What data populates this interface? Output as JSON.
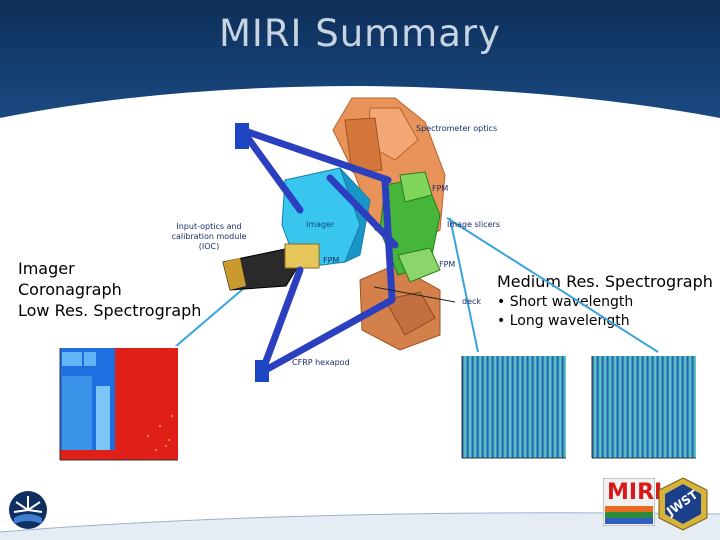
{
  "slide": {
    "title": "MIRI Summary",
    "left_labels": [
      "Imager",
      "Coronagraph",
      "Low Res. Spectrograph"
    ],
    "right_title": "Medium Res. Spectrograph",
    "right_bullets": [
      "• Short wavelength",
      "• Long wavelength"
    ]
  },
  "diagram_labels": {
    "spectrometer_optics": "Spectrometer optics",
    "fpm_top": "FPM",
    "image_slicers": "Image slicers",
    "fpm_right": "FPM",
    "fpm_left": "FPM",
    "imager": "Imager",
    "ioc": "Input-optics and calibration module (IOC)",
    "deck": "deck",
    "hexapod": "CFRP hexapod"
  },
  "logos": {
    "miri": "MIRI",
    "jwst": "JWST"
  },
  "colors": {
    "header_navy": "#123a6b",
    "accent_blue": "#1a9fd6"
  }
}
